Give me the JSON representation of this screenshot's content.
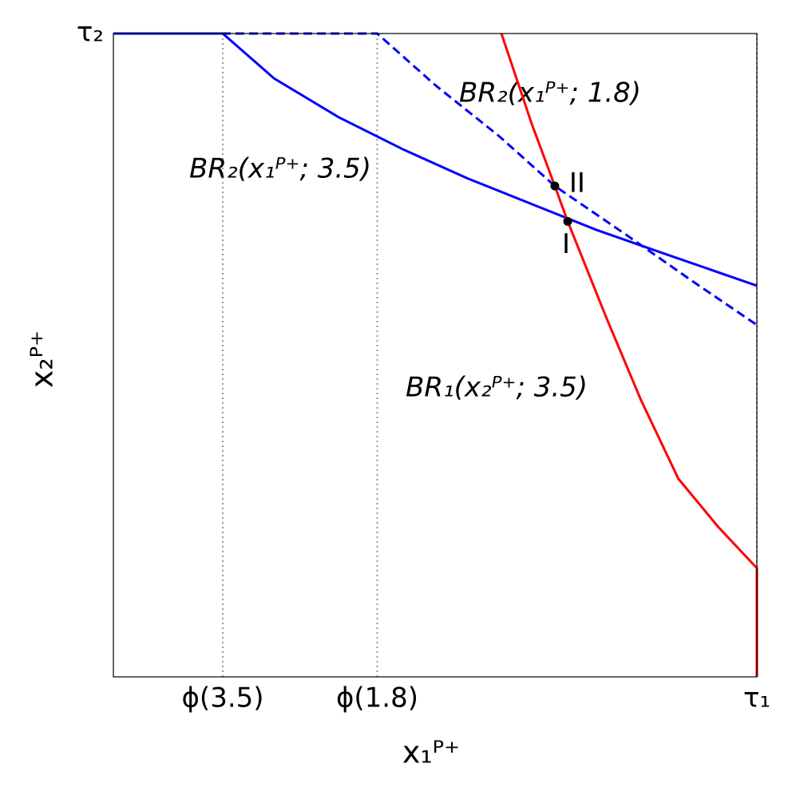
{
  "chart_data": {
    "type": "line",
    "x_label": "x₁ᴾ⁺",
    "y_label": "x₂ᴾ⁺",
    "xlim": [
      0,
      1
    ],
    "ylim": [
      0,
      1
    ],
    "xticks": [
      {
        "value": 0.17,
        "label": "ϕ(3.5)"
      },
      {
        "value": 0.41,
        "label": "ϕ(1.8)"
      },
      {
        "value": 1,
        "label": "τ₁"
      }
    ],
    "yticks": [
      {
        "value": 1,
        "label": "τ₂"
      }
    ],
    "x_grid": true,
    "series": [
      {
        "name": "BR₂(x₁ᴾ⁺; 3.5)",
        "color": "#0000ff",
        "dashed": false,
        "x": [
          0,
          0.17,
          0.25,
          0.35,
          0.45,
          0.55,
          0.65,
          0.75,
          0.85,
          1.0
        ],
        "values": [
          1,
          1,
          0.93,
          0.87,
          0.82,
          0.775,
          0.735,
          0.695,
          0.66,
          0.608
        ]
      },
      {
        "name": "BR₂(x₁ᴾ⁺; 1.8)",
        "color": "#0000ff",
        "dashed": true,
        "x": [
          0,
          0.41,
          0.5,
          0.6,
          0.686,
          0.8,
          0.9,
          1.0
        ],
        "values": [
          1,
          1,
          0.92,
          0.84,
          0.763,
          0.685,
          0.615,
          0.547
        ]
      },
      {
        "name": "BR₁(x₂ᴾ⁺; 3.5)",
        "color": "#ff0000",
        "dashed": false,
        "x": [
          0.603,
          0.65,
          0.686,
          0.706,
          0.767,
          0.82,
          0.878,
          0.94,
          1.0,
          1.0
        ],
        "values": [
          1,
          0.86,
          0.763,
          0.708,
          0.556,
          0.43,
          0.308,
          0.233,
          0.169,
          0
        ]
      }
    ],
    "points": [
      {
        "label": "II",
        "x": 0.686,
        "y": 0.763
      },
      {
        "label": "I",
        "x": 0.706,
        "y": 0.708
      }
    ]
  }
}
